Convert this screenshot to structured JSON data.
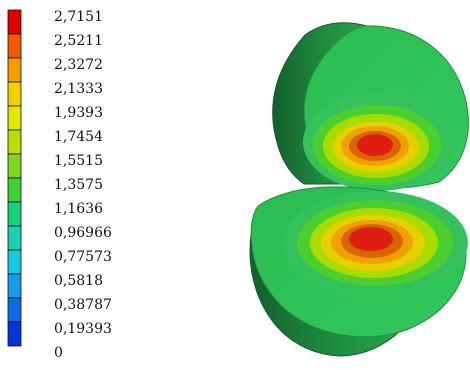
{
  "legend": {
    "labels": [
      "2,7151",
      "2,5211",
      "2,3272",
      "2,1333",
      "1,9393",
      "1,7454",
      "1,5515",
      "1,3575",
      "1,1636",
      "0,96966",
      "0,77573",
      "0,5818",
      "0,38787",
      "0,19393",
      "0"
    ],
    "colors": [
      "#e00000",
      "#ef5a00",
      "#f59c00",
      "#f1d000",
      "#e2ea00",
      "#b7e000",
      "#7fd81c",
      "#3ed23a",
      "#19d07a",
      "#17d2b2",
      "#16c9e0",
      "#139de8",
      "#0f6ae5",
      "#0a32da"
    ]
  },
  "model": {
    "base_color": "#1e9b43",
    "shell_colors": {
      "outer_dark": "#156f33",
      "outer_mid": "#1f8d40",
      "outer_light": "#2ba24a"
    },
    "contour_colors": [
      "#2fbe55",
      "#4fd12c",
      "#a6db00",
      "#e8d400",
      "#f0a400",
      "#d86600",
      "#df1d10"
    ]
  }
}
